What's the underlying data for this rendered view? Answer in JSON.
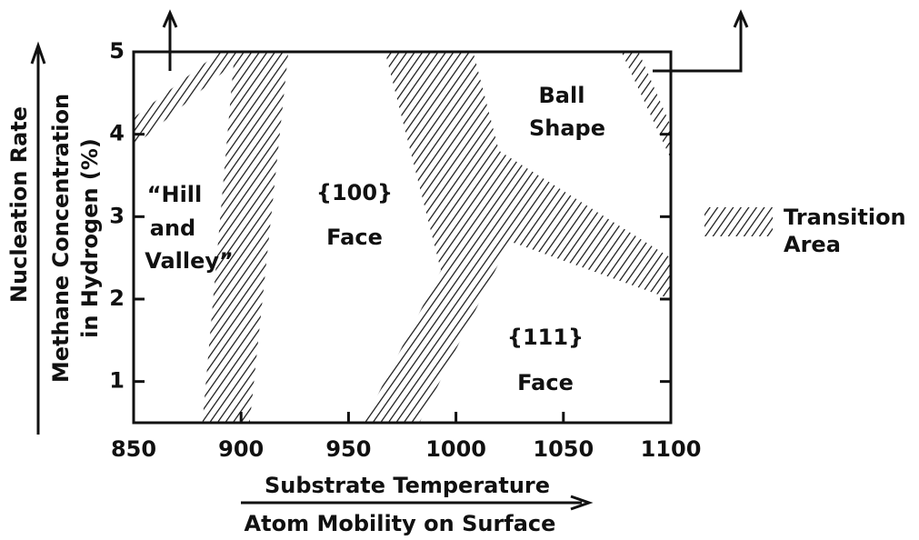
{
  "chart_data": {
    "type": "region",
    "xlabel": "Substrate Temperature",
    "xlabel2": "Atom Mobility on Surface",
    "ylabel": "Nucleation Rate",
    "ylabel2": [
      "Methane Concentration",
      "in Hydrogen (%)"
    ],
    "xlim": [
      850,
      1100
    ],
    "ylim": [
      0.5,
      5
    ],
    "xticks": [
      850,
      900,
      950,
      1000,
      1050,
      1100
    ],
    "yticks": [
      1,
      2,
      3,
      4,
      5
    ],
    "regions": [
      {
        "x": [
          850,
          850,
          890,
          903
        ],
        "y": [
          3.85,
          4.2,
          5,
          5
        ]
      },
      {
        "x": [
          897,
          922,
          904,
          882
        ],
        "y": [
          5,
          5,
          0.5,
          0.5
        ]
      },
      {
        "x": [
          967,
          1008,
          1020,
          1100,
          1100,
          1025,
          983,
          957,
          993
        ],
        "y": [
          5,
          5,
          3.8,
          2.5,
          2.0,
          2.7,
          0.5,
          0.5,
          2.35
        ]
      },
      {
        "x": [
          1077,
          1085,
          1100,
          1100
        ],
        "y": [
          5,
          5,
          4.1,
          3.7
        ]
      }
    ],
    "annotations": [
      [
        "“Hill",
        "and",
        "Valley”"
      ],
      [
        "{100}",
        "Face"
      ],
      [
        "{111}",
        "Face"
      ],
      [
        "Ball",
        "Shape"
      ]
    ],
    "legend": [
      "Transition",
      "Area"
    ]
  }
}
